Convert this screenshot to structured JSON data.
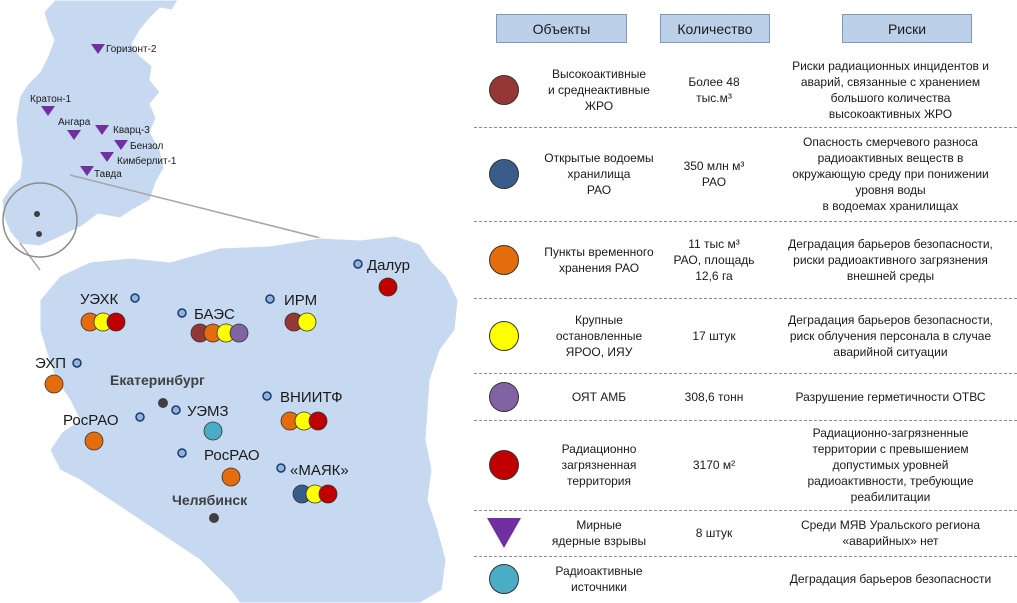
{
  "map": {
    "north_sites": [
      {
        "name": "Горизонт-2"
      },
      {
        "name": "Кратон-1"
      },
      {
        "name": "Ангара"
      },
      {
        "name": "Кварц-3"
      },
      {
        "name": "Бензол"
      },
      {
        "name": "Кимберлит-1"
      },
      {
        "name": "Тавда"
      }
    ],
    "south_sites": [
      {
        "name": "УЭХК"
      },
      {
        "name": "БАЭС"
      },
      {
        "name": "ИРМ"
      },
      {
        "name": "Далур"
      },
      {
        "name": "ЭХП"
      },
      {
        "name": "РосРАО"
      },
      {
        "name": "УЭМЗ"
      },
      {
        "name": "ВНИИТФ"
      },
      {
        "name": "РосРАО"
      },
      {
        "name": "«МАЯК»"
      }
    ],
    "cities": [
      "Екатеринбург",
      "Челябинск"
    ]
  },
  "table": {
    "headers": [
      "Объекты",
      "Количество",
      "Риски"
    ],
    "rows": [
      {
        "icon": "circle",
        "color": "#953735",
        "object": "Высокоактивные\nи среднеактивные\nЖРО",
        "quantity": "Более 48\nтыс.м³",
        "risk": "Риски радиационных инцидентов и\nаварий, связанные с хранением\nбольшого количества\nвысокоактивных ЖРО"
      },
      {
        "icon": "circle",
        "color": "#385d8a",
        "object": "Открытые водоемы\nхранилища\nРАО",
        "quantity": "350 млн м³\nРАО",
        "risk": "Опасность смерчевого разноса\nрадиоактивных веществ в\nокружающую среду при понижении\nуровня воды\nв водоемах хранилищах"
      },
      {
        "icon": "circle",
        "color": "#e46c0a",
        "object": "Пункты временного\nхранения РАО",
        "quantity": "11 тыс м³\nРАО, площадь\n12,6 га",
        "risk": "Деградация барьеров безопасности,\nриски радиоактивного загрязнения\nвнешней среды"
      },
      {
        "icon": "circle",
        "color": "#ffff00",
        "object": "Крупные\nостановленные\nЯРОО, ИЯУ",
        "quantity": "17 штук",
        "risk": "Деградация барьеров безопасности,\nриск облучения персонала в случае\nаварийной ситуации"
      },
      {
        "icon": "circle",
        "color": "#8064a2",
        "object": "ОЯТ АМБ",
        "quantity": "308,6 тонн",
        "risk": "Разрушение герметичности ОТВС"
      },
      {
        "icon": "circle",
        "color": "#c00000",
        "object": "Радиационно\nзагрязненная\nтерритория",
        "quantity": "3170 м²",
        "risk": "Радиационно-загрязненные\nтерритории с превышением\nдопустимых уровней\nрадиоактивности, требующие\nреабилитации"
      },
      {
        "icon": "triangle",
        "color": "#7030a0",
        "object": "Мирные\nядерные взрывы",
        "quantity": "8 штук",
        "risk": "Среди МЯВ Уральского региона\n«аварийных» нет"
      },
      {
        "icon": "circle",
        "color": "#4bacc6",
        "object": "Радиоактивные\nисточники",
        "quantity": "",
        "risk": "Деградация барьеров безопасности"
      }
    ]
  }
}
